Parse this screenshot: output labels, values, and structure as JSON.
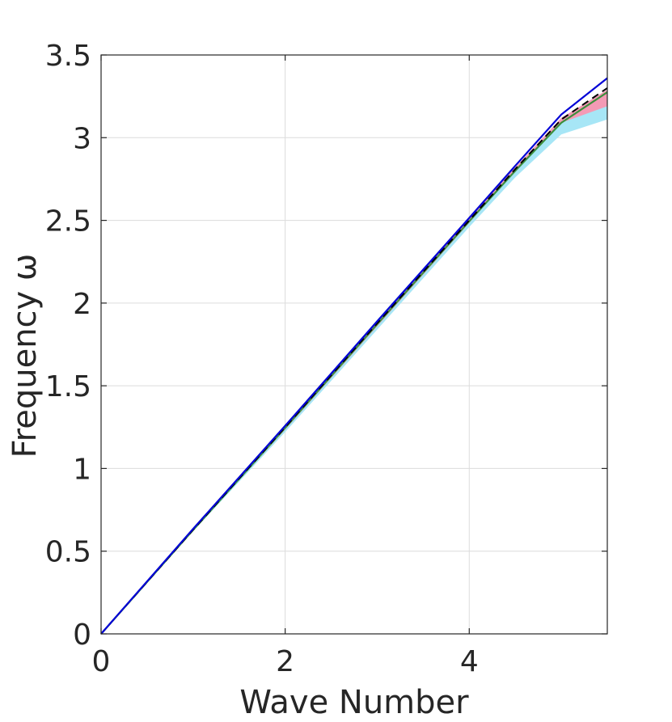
{
  "chart_data": {
    "type": "line",
    "xlabel": "Wave Number",
    "ylabel": "Frequency ω",
    "xlim": [
      0,
      5.5
    ],
    "ylim": [
      0,
      3.5
    ],
    "grid": true,
    "xticks": [
      0,
      2,
      4
    ],
    "xtick_labels": [
      "0",
      "2",
      "4"
    ],
    "yticks": [
      0,
      0.5,
      1,
      1.5,
      2,
      2.5,
      3,
      3.5
    ],
    "ytick_labels": [
      "0",
      "0.5",
      "1",
      "1.5",
      "2",
      "2.5",
      "3",
      "3.5"
    ],
    "bands": [
      {
        "color": "#a7e6f6",
        "x": [
          0,
          1,
          2,
          3,
          4,
          4.5,
          5,
          5.5
        ],
        "lower": [
          0,
          0.62,
          1.22,
          1.84,
          2.46,
          2.76,
          3.02,
          3.11
        ],
        "upper": [
          0,
          0.64,
          1.26,
          1.9,
          2.52,
          2.82,
          3.1,
          3.2
        ]
      },
      {
        "color": "#f49ab5",
        "x": [
          0,
          1,
          2,
          3,
          4,
          4.5,
          5,
          5.5
        ],
        "lower": [
          0,
          0.625,
          1.235,
          1.86,
          2.485,
          2.8,
          3.09,
          3.19
        ],
        "upper": [
          0,
          0.635,
          1.255,
          1.885,
          2.51,
          2.82,
          3.12,
          3.29
        ]
      }
    ],
    "series": [
      {
        "color": "#3c8f3c",
        "style": "solid",
        "x": [
          0,
          1,
          2,
          3,
          4,
          4.5,
          5,
          5.5
        ],
        "y": [
          0,
          0.628,
          1.245,
          1.872,
          2.495,
          2.8,
          3.09,
          3.275
        ]
      },
      {
        "color": "#000000",
        "style": "dashed",
        "x": [
          0,
          1,
          2,
          3,
          4,
          4.5,
          5,
          5.5
        ],
        "y": [
          0,
          0.63,
          1.25,
          1.878,
          2.5,
          2.81,
          3.11,
          3.3
        ]
      },
      {
        "color": "#0000d6",
        "style": "solid",
        "x": [
          0,
          1,
          2,
          3,
          4,
          4.5,
          5,
          5.5
        ],
        "y": [
          0,
          0.635,
          1.258,
          1.89,
          2.515,
          2.83,
          3.14,
          3.36
        ]
      }
    ],
    "colors": {
      "axis": "#262626",
      "grid": "#dcdcdc"
    }
  }
}
